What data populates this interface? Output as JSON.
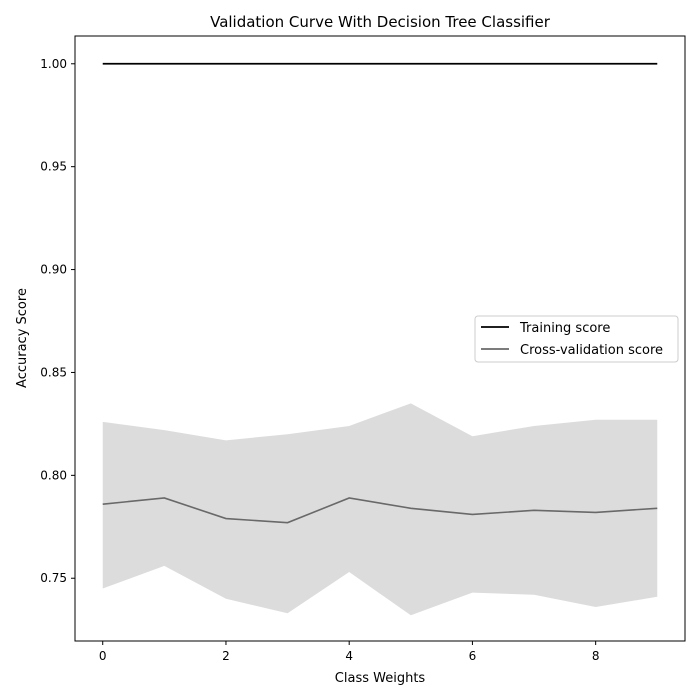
{
  "chart_data": {
    "type": "line",
    "title": "Validation Curve With Decision Tree Classifier",
    "xlabel": "Class Weights",
    "ylabel": "Accuracy Score",
    "x": [
      0,
      1,
      2,
      3,
      4,
      5,
      6,
      7,
      8,
      9
    ],
    "xlim": [
      -0.45,
      9.45
    ],
    "ylim": [
      0.7195,
      1.0135
    ],
    "xticks": [
      0,
      2,
      4,
      6,
      8
    ],
    "xtick_labels": [
      "0",
      "2",
      "4",
      "6",
      "8"
    ],
    "yticks": [
      0.75,
      0.8,
      0.85,
      0.9,
      0.95,
      1.0
    ],
    "ytick_labels": [
      "0.75",
      "0.80",
      "0.85",
      "0.90",
      "0.95",
      "1.00"
    ],
    "grid": false,
    "legend_position": "center-right",
    "series": [
      {
        "name": "Training score",
        "color": "#000000",
        "values": [
          1.0,
          1.0,
          1.0,
          1.0,
          1.0,
          1.0,
          1.0,
          1.0,
          1.0,
          1.0
        ]
      },
      {
        "name": "Cross-validation score",
        "color": "#696969",
        "values": [
          0.786,
          0.789,
          0.779,
          0.777,
          0.789,
          0.784,
          0.781,
          0.783,
          0.782,
          0.784
        ],
        "band_lower": [
          0.745,
          0.756,
          0.74,
          0.733,
          0.753,
          0.732,
          0.743,
          0.742,
          0.736,
          0.741
        ],
        "band_upper": [
          0.826,
          0.822,
          0.817,
          0.82,
          0.824,
          0.835,
          0.819,
          0.824,
          0.827,
          0.827
        ],
        "band_color": "#DCDCDC"
      }
    ]
  }
}
